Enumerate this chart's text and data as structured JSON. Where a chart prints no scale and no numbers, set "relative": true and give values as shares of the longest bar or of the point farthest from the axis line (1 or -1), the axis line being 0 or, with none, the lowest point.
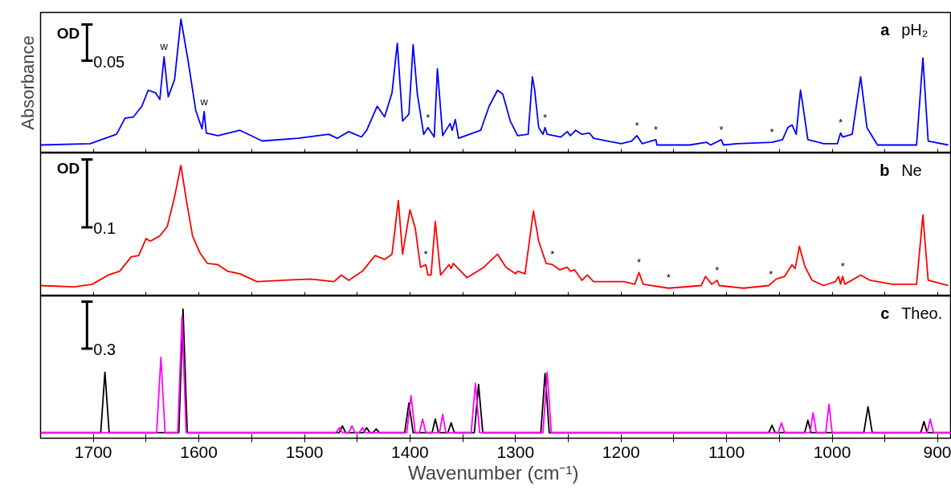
{
  "chart_data": [
    {
      "type": "line",
      "relative": true,
      "ylabel": "Absorbance",
      "xlim": [
        1750,
        887
      ],
      "xticks": [
        1700,
        {
          "value": 1650,
          "label": null
        },
        1600,
        {
          "value": 1550,
          "label": null
        },
        1500,
        {
          "value": 1450,
          "label": null
        },
        1400,
        {
          "value": 1350,
          "label": null
        },
        1300,
        {
          "value": 1250,
          "label": null
        },
        1200,
        {
          "value": 1150,
          "label": null
        },
        1100,
        {
          "value": 1050,
          "label": null
        },
        1000,
        {
          "value": 950,
          "label": null
        },
        900
      ],
      "tick_labels": false,
      "grid": false,
      "series": [
        {
          "color": "#0000ff",
          "x": [
            1750,
            1703,
            1678,
            1670,
            1662,
            1654,
            1648,
            1641,
            1637,
            1633,
            1629,
            1623,
            1617,
            1610,
            1603,
            1597,
            1595,
            1593,
            1582,
            1561,
            1540,
            1506,
            1477,
            1469,
            1458,
            1446,
            1441,
            1431,
            1424,
            1417,
            1412,
            1407,
            1401,
            1397,
            1393,
            1387,
            1383,
            1377,
            1374,
            1369,
            1362,
            1360,
            1357,
            1354,
            1333,
            1325,
            1317,
            1312,
            1305,
            1298,
            1288,
            1284,
            1282,
            1278,
            1274,
            1272,
            1270,
            1257,
            1251,
            1248,
            1243,
            1237,
            1230,
            1226,
            1200,
            1190,
            1185,
            1180,
            1167,
            1166,
            1135,
            1119,
            1115,
            1105,
            1103,
            1090,
            1057,
            1047,
            1042,
            1038,
            1034,
            1030,
            1028,
            1023,
            1008,
            995,
            992,
            990,
            981,
            973,
            967,
            964,
            957,
            920,
            914,
            909,
            890
          ],
          "values": [
            0.06,
            0.07,
            0.14,
            0.26,
            0.27,
            0.35,
            0.47,
            0.45,
            0.4,
            0.72,
            0.42,
            0.55,
            1.0,
            0.68,
            0.32,
            0.18,
            0.31,
            0.15,
            0.13,
            0.17,
            0.09,
            0.11,
            0.14,
            0.11,
            0.16,
            0.12,
            0.17,
            0.35,
            0.27,
            0.45,
            0.82,
            0.24,
            0.29,
            0.81,
            0.44,
            0.14,
            0.19,
            0.12,
            0.63,
            0.13,
            0.22,
            0.17,
            0.25,
            0.11,
            0.17,
            0.35,
            0.47,
            0.44,
            0.24,
            0.13,
            0.14,
            0.57,
            0.48,
            0.19,
            0.14,
            0.19,
            0.14,
            0.12,
            0.16,
            0.13,
            0.17,
            0.14,
            0.15,
            0.11,
            0.07,
            0.09,
            0.13,
            0.07,
            0.1,
            0.06,
            0.06,
            0.08,
            0.06,
            0.1,
            0.06,
            0.07,
            0.08,
            0.1,
            0.19,
            0.21,
            0.14,
            0.47,
            0.37,
            0.1,
            0.07,
            0.07,
            0.15,
            0.12,
            0.14,
            0.57,
            0.19,
            0.15,
            0.06,
            0.06,
            0.71,
            0.09,
            0.06
          ]
        }
      ],
      "annotations": [
        "a",
        "pH₂",
        "OD",
        "0.05",
        {
          "text": "w",
          "x": 1633,
          "y": 0.72
        },
        {
          "text": "w",
          "x": 1595,
          "y": 0.31
        },
        {
          "text": "*",
          "x": 1383,
          "y": 0.19
        },
        {
          "text": "*",
          "x": 1272,
          "y": 0.19
        },
        {
          "text": "*",
          "x": 1185,
          "y": 0.13
        },
        {
          "text": "*",
          "x": 1167,
          "y": 0.1
        },
        {
          "text": "*",
          "x": 1105,
          "y": 0.1
        },
        {
          "text": "*",
          "x": 1057,
          "y": 0.08
        },
        {
          "text": "*",
          "x": 992,
          "y": 0.15
        }
      ]
    },
    {
      "type": "line",
      "relative": true,
      "xlim": [
        1750,
        887
      ],
      "xticks": [
        1700,
        {
          "value": 1650,
          "label": null
        },
        1600,
        {
          "value": 1550,
          "label": null
        },
        1500,
        {
          "value": 1450,
          "label": null
        },
        1400,
        {
          "value": 1350,
          "label": null
        },
        1300,
        {
          "value": 1250,
          "label": null
        },
        1200,
        {
          "value": 1150,
          "label": null
        },
        1100,
        {
          "value": 1050,
          "label": null
        },
        1000,
        {
          "value": 950,
          "label": null
        },
        900
      ],
      "tick_labels": false,
      "grid": false,
      "series": [
        {
          "color": "#ff0000",
          "x": [
            1750,
            1718,
            1701,
            1686,
            1675,
            1664,
            1657,
            1650,
            1646,
            1637,
            1630,
            1623,
            1617,
            1612,
            1606,
            1599,
            1592,
            1582,
            1573,
            1561,
            1545,
            1520,
            1494,
            1472,
            1465,
            1458,
            1445,
            1433,
            1424,
            1417,
            1411,
            1407,
            1400,
            1395,
            1390,
            1385,
            1383,
            1380,
            1376,
            1371,
            1363,
            1361,
            1359,
            1346,
            1330,
            1317,
            1309,
            1300,
            1298,
            1291,
            1283,
            1278,
            1271,
            1265,
            1258,
            1251,
            1248,
            1244,
            1237,
            1232,
            1226,
            1197,
            1187,
            1183,
            1179,
            1155,
            1124,
            1120,
            1114,
            1109,
            1107,
            1084,
            1060,
            1053,
            1045,
            1038,
            1035,
            1031,
            1026,
            1019,
            1008,
            997,
            994,
            992,
            990,
            988,
            973,
            964,
            943,
            920,
            914,
            909,
            890
          ],
          "values": [
            0.08,
            0.07,
            0.09,
            0.16,
            0.19,
            0.3,
            0.31,
            0.44,
            0.42,
            0.46,
            0.53,
            0.76,
            1.0,
            0.74,
            0.46,
            0.33,
            0.25,
            0.24,
            0.19,
            0.17,
            0.11,
            0.12,
            0.13,
            0.11,
            0.16,
            0.12,
            0.19,
            0.31,
            0.28,
            0.32,
            0.73,
            0.32,
            0.66,
            0.52,
            0.22,
            0.24,
            0.16,
            0.16,
            0.57,
            0.16,
            0.24,
            0.21,
            0.25,
            0.14,
            0.22,
            0.32,
            0.22,
            0.17,
            0.19,
            0.17,
            0.65,
            0.42,
            0.25,
            0.24,
            0.2,
            0.22,
            0.19,
            0.2,
            0.12,
            0.16,
            0.11,
            0.11,
            0.09,
            0.18,
            0.09,
            0.06,
            0.08,
            0.15,
            0.09,
            0.12,
            0.08,
            0.06,
            0.08,
            0.13,
            0.15,
            0.24,
            0.21,
            0.38,
            0.23,
            0.12,
            0.08,
            0.11,
            0.15,
            0.09,
            0.15,
            0.09,
            0.16,
            0.12,
            0.09,
            0.09,
            0.62,
            0.12,
            0.08
          ]
        }
      ],
      "annotations": [
        "b",
        "Ne",
        "OD",
        "0.1",
        {
          "text": "*",
          "x": 1385,
          "y": 0.24
        },
        {
          "text": "*",
          "x": 1265,
          "y": 0.24
        },
        {
          "text": "*",
          "x": 1183,
          "y": 0.18
        },
        {
          "text": "*",
          "x": 1155,
          "y": 0.06
        },
        {
          "text": "*",
          "x": 1109,
          "y": 0.12
        },
        {
          "text": "*",
          "x": 1058,
          "y": 0.09
        },
        {
          "text": "*",
          "x": 990,
          "y": 0.15
        }
      ]
    },
    {
      "type": "line",
      "relative": true,
      "xlabel": "Wavenumber  (cm⁻¹)",
      "xlim": [
        1750,
        887
      ],
      "xticks": [
        1700,
        {
          "value": 1650,
          "label": null
        },
        1600,
        {
          "value": 1550,
          "label": null
        },
        1500,
        {
          "value": 1450,
          "label": null
        },
        1400,
        {
          "value": 1350,
          "label": null
        },
        1300,
        {
          "value": 1250,
          "label": null
        },
        1200,
        {
          "value": 1150,
          "label": null
        },
        1100,
        {
          "value": 1050,
          "label": null
        },
        1000,
        {
          "value": 950,
          "label": null
        },
        900
      ],
      "tick_labels": "x",
      "grid": false,
      "series": [
        {
          "color": "#000000",
          "x": [
            1750,
            1693,
            1689,
            1685,
            1619,
            1615,
            1611,
            1467,
            1464,
            1461,
            1444,
            1441,
            1438,
            1435,
            1432,
            1429,
            1405,
            1401,
            1397,
            1379,
            1376,
            1373,
            1364,
            1361,
            1358,
            1339,
            1335,
            1331,
            1276,
            1272,
            1268,
            1060,
            1057,
            1054,
            1026,
            1023,
            1020,
            970,
            966,
            962,
            916,
            913,
            910,
            887
          ],
          "values": [
            0,
            0,
            0.49,
            0,
            0,
            1.0,
            0,
            0,
            0.055,
            0,
            0,
            0.04,
            0,
            0,
            0.03,
            0,
            0,
            0.24,
            0,
            0,
            0.11,
            0,
            0,
            0.08,
            0,
            0,
            0.39,
            0,
            0,
            0.48,
            0,
            0,
            0.06,
            0,
            0,
            0.1,
            0,
            0,
            0.21,
            0,
            0,
            0.09,
            0,
            0
          ]
        },
        {
          "color": "#ff00ff",
          "x": [
            1750,
            1640,
            1636,
            1632,
            1620,
            1616,
            1612,
            1470,
            1467,
            1464,
            1458,
            1455,
            1452,
            1448,
            1445,
            1442,
            1403,
            1399,
            1395,
            1391,
            1388,
            1385,
            1372,
            1369,
            1366,
            1342,
            1338,
            1334,
            1274,
            1270,
            1266,
            1051,
            1048,
            1045,
            1021,
            1018,
            1015,
            1006,
            1003,
            1000,
            910,
            907,
            904,
            887
          ],
          "values": [
            0,
            0,
            0.61,
            0,
            0,
            0.94,
            0,
            0,
            0.04,
            0,
            0,
            0.055,
            0,
            0,
            0.04,
            0,
            0,
            0.3,
            0,
            0,
            0.11,
            0,
            0,
            0.15,
            0,
            0,
            0.4,
            0,
            0,
            0.49,
            0,
            0,
            0.08,
            0,
            0,
            0.16,
            0,
            0,
            0.23,
            0,
            0,
            0.11,
            0,
            0
          ]
        }
      ],
      "annotations": [
        "c",
        "Theo.",
        "0.3"
      ]
    }
  ]
}
